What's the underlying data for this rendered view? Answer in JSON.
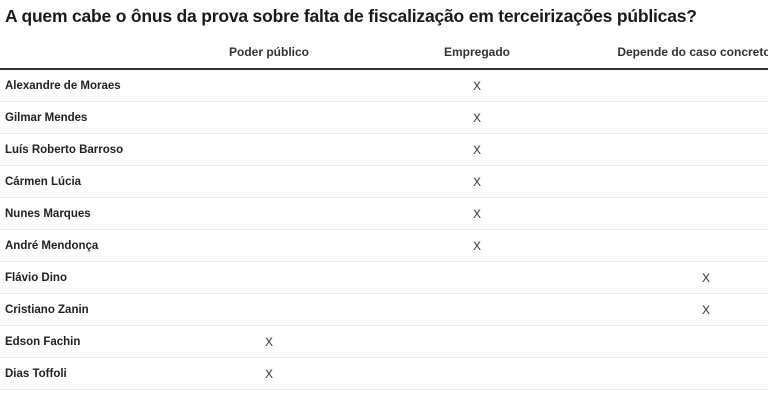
{
  "title": "A quem cabe o ônus da prova sobre falta de fiscalização em terceirizações públicas?",
  "columns": [
    "",
    "Poder público",
    "Empregado",
    "Depende do caso concreto"
  ],
  "mark_symbol": "X",
  "rows": [
    {
      "name": "Alexandre de Moraes",
      "marks": [
        "",
        "X",
        ""
      ]
    },
    {
      "name": "Gilmar Mendes",
      "marks": [
        "",
        "X",
        ""
      ]
    },
    {
      "name": "Luís Roberto Barroso",
      "marks": [
        "",
        "X",
        ""
      ]
    },
    {
      "name": "Cármen Lúcia",
      "marks": [
        "",
        "X",
        ""
      ]
    },
    {
      "name": "Nunes Marques",
      "marks": [
        "",
        "X",
        ""
      ]
    },
    {
      "name": "André Mendonça",
      "marks": [
        "",
        "X",
        ""
      ]
    },
    {
      "name": "Flávio Dino",
      "marks": [
        "",
        "",
        "X"
      ]
    },
    {
      "name": "Cristiano Zanin",
      "marks": [
        "",
        "",
        "X"
      ]
    },
    {
      "name": "Edson Fachin",
      "marks": [
        "X",
        "",
        ""
      ]
    },
    {
      "name": "Dias Toffoli",
      "marks": [
        "X",
        "",
        ""
      ]
    }
  ]
}
